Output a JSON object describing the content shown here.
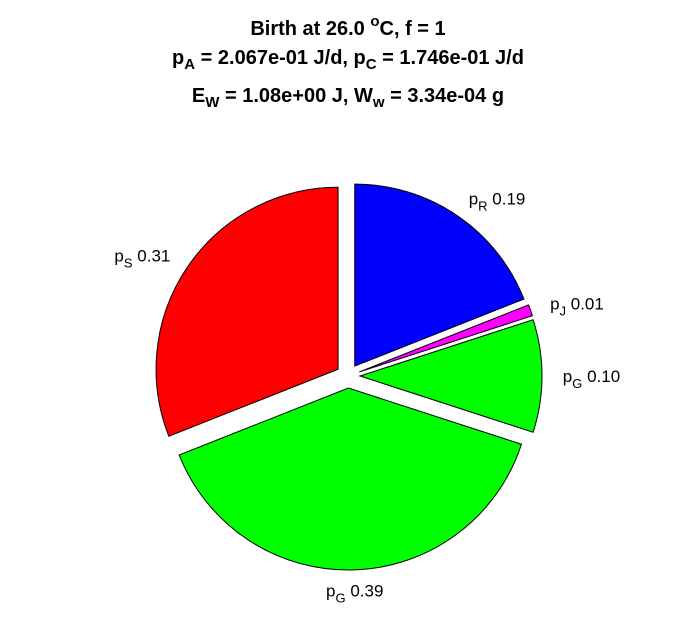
{
  "title": {
    "line1": {
      "a": "Birth at 26.0 ",
      "sup": "o",
      "b": "C, f = 1"
    },
    "line2": {
      "a": "p",
      "sub1": "A",
      "b": " = 2.067e-01 J/d, p",
      "sub2": "C",
      "c": " = 1.746e-01 J/d"
    },
    "line3": {
      "a": "E",
      "sub1": "W",
      "b": " = 1.08e+00 J, W",
      "sub2": "w",
      "c": " = 3.34e-04 g"
    }
  },
  "chart_data": {
    "type": "pie",
    "exploded": true,
    "start": "top",
    "direction": "clockwise",
    "slices": [
      {
        "sym": "p",
        "sub": "R",
        "value": 0.19,
        "label": "0.19",
        "color": "#0000ff"
      },
      {
        "sym": "p",
        "sub": "J",
        "value": 0.01,
        "label": "0.01",
        "color": "#ff00ff"
      },
      {
        "sym": "p",
        "sub": "G",
        "value": 0.1,
        "label": "0.10",
        "color": "#00ff00"
      },
      {
        "sym": "p",
        "sub": "G",
        "value": 0.39,
        "label": "0.39",
        "color": "#00ff00"
      },
      {
        "sym": "p",
        "sub": "S",
        "value": 0.31,
        "label": "0.31",
        "color": "#ff0000"
      }
    ]
  }
}
